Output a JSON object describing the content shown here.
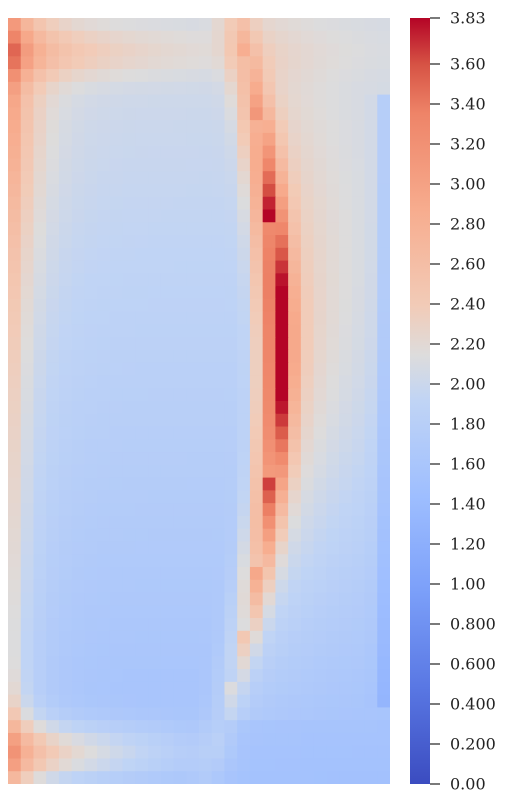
{
  "chart_data": {
    "type": "heatmap",
    "title": "",
    "xlabel": "",
    "ylabel": "",
    "colormap": "coolwarm",
    "colorbar": {
      "min": 0.0,
      "max": 3.83,
      "placement": "right",
      "ticks": [
        {
          "value": 3.83,
          "label": "3.83"
        },
        {
          "value": 3.6,
          "label": "3.60"
        },
        {
          "value": 3.4,
          "label": "3.40"
        },
        {
          "value": 3.2,
          "label": "3.20"
        },
        {
          "value": 3.0,
          "label": "3.00"
        },
        {
          "value": 2.8,
          "label": "2.80"
        },
        {
          "value": 2.6,
          "label": "2.60"
        },
        {
          "value": 2.4,
          "label": "2.40"
        },
        {
          "value": 2.2,
          "label": "2.20"
        },
        {
          "value": 2.0,
          "label": "2.00"
        },
        {
          "value": 1.8,
          "label": "1.80"
        },
        {
          "value": 1.6,
          "label": "1.60"
        },
        {
          "value": 1.4,
          "label": "1.40"
        },
        {
          "value": 1.2,
          "label": "1.20"
        },
        {
          "value": 1.0,
          "label": "1.00"
        },
        {
          "value": 0.8,
          "label": "0.800"
        },
        {
          "value": 0.6,
          "label": "0.600"
        },
        {
          "value": 0.4,
          "label": "0.400"
        },
        {
          "value": 0.2,
          "label": "0.200"
        },
        {
          "value": 0.0,
          "label": "0.00"
        }
      ]
    },
    "colors": {
      "low": "#3b4cc0",
      "mid": "#dddddd",
      "high": "#b40426"
    },
    "grid_shape": [
      60,
      30
    ],
    "values_note_skip": true
  }
}
